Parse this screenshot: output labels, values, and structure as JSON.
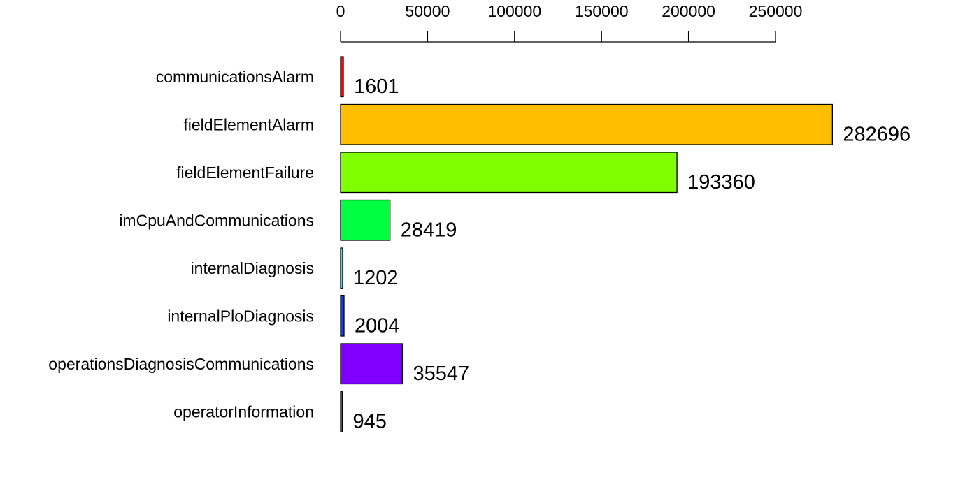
{
  "chart_data": {
    "type": "bar",
    "orientation": "horizontal",
    "categories": [
      "communicationsAlarm",
      "fieldElementAlarm",
      "fieldElementFailure",
      "imCpuAndCommunications",
      "internalDiagnosis",
      "internalPloDiagnosis",
      "operationsDiagnosisCommunications",
      "operatorInformation"
    ],
    "values": [
      1601,
      282696,
      193360,
      28419,
      1202,
      2004,
      35547,
      945
    ],
    "value_labels": [
      "1601",
      "282696",
      "193360",
      "28419",
      "1202",
      "2004",
      "35547",
      "945"
    ],
    "colors": [
      "#ff0000",
      "#ffbf00",
      "#80ff00",
      "#00ff40",
      "#00ffff",
      "#0040ff",
      "#8000ff",
      "#ff00bf"
    ],
    "xticks": [
      0,
      50000,
      100000,
      150000,
      200000,
      250000
    ],
    "xtick_labels": [
      "0",
      "50000",
      "100000",
      "150000",
      "200000",
      "250000"
    ],
    "xlim": [
      0,
      250000
    ],
    "axis_position": "top",
    "grid": false,
    "legend": "none",
    "title": "",
    "xlabel": "",
    "ylabel": ""
  }
}
